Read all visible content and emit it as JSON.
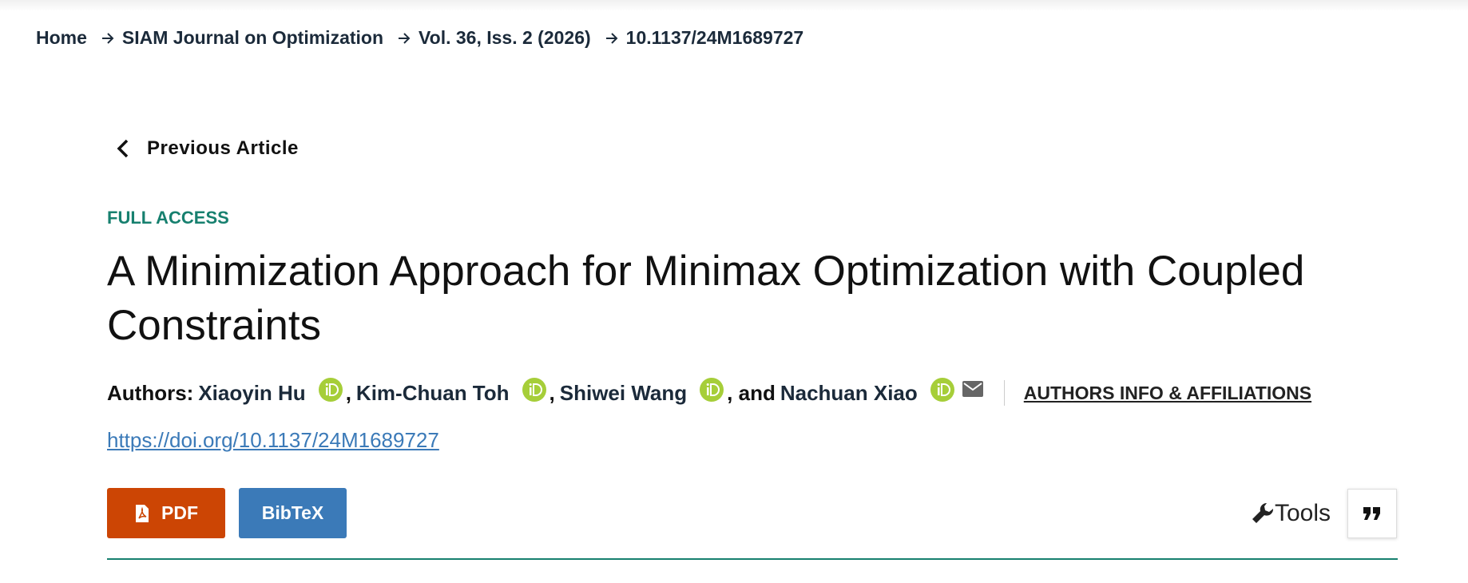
{
  "breadcrumb": [
    "Home",
    "SIAM Journal on Optimization",
    "Vol. 36, Iss. 2 (2026)",
    "10.1137/24M1689727"
  ],
  "previous_article": "Previous Article",
  "access": "FULL ACCESS",
  "title": "A Minimization Approach for Minimax Optimization with Coupled Constraints",
  "authors": {
    "label": "Authors:",
    "names": [
      "Xiaoyin Hu",
      "Kim-Chuan Toh",
      "Shiwei Wang",
      "Nachuan Xiao"
    ],
    "joiners": [
      ",",
      ",",
      ", and"
    ]
  },
  "authors_info": "AUTHORS INFO & AFFILIATIONS",
  "doi": "https://doi.org/10.1137/24M1689727",
  "buttons": [
    "PDF",
    "BibTeX"
  ],
  "tools": "Tools"
}
